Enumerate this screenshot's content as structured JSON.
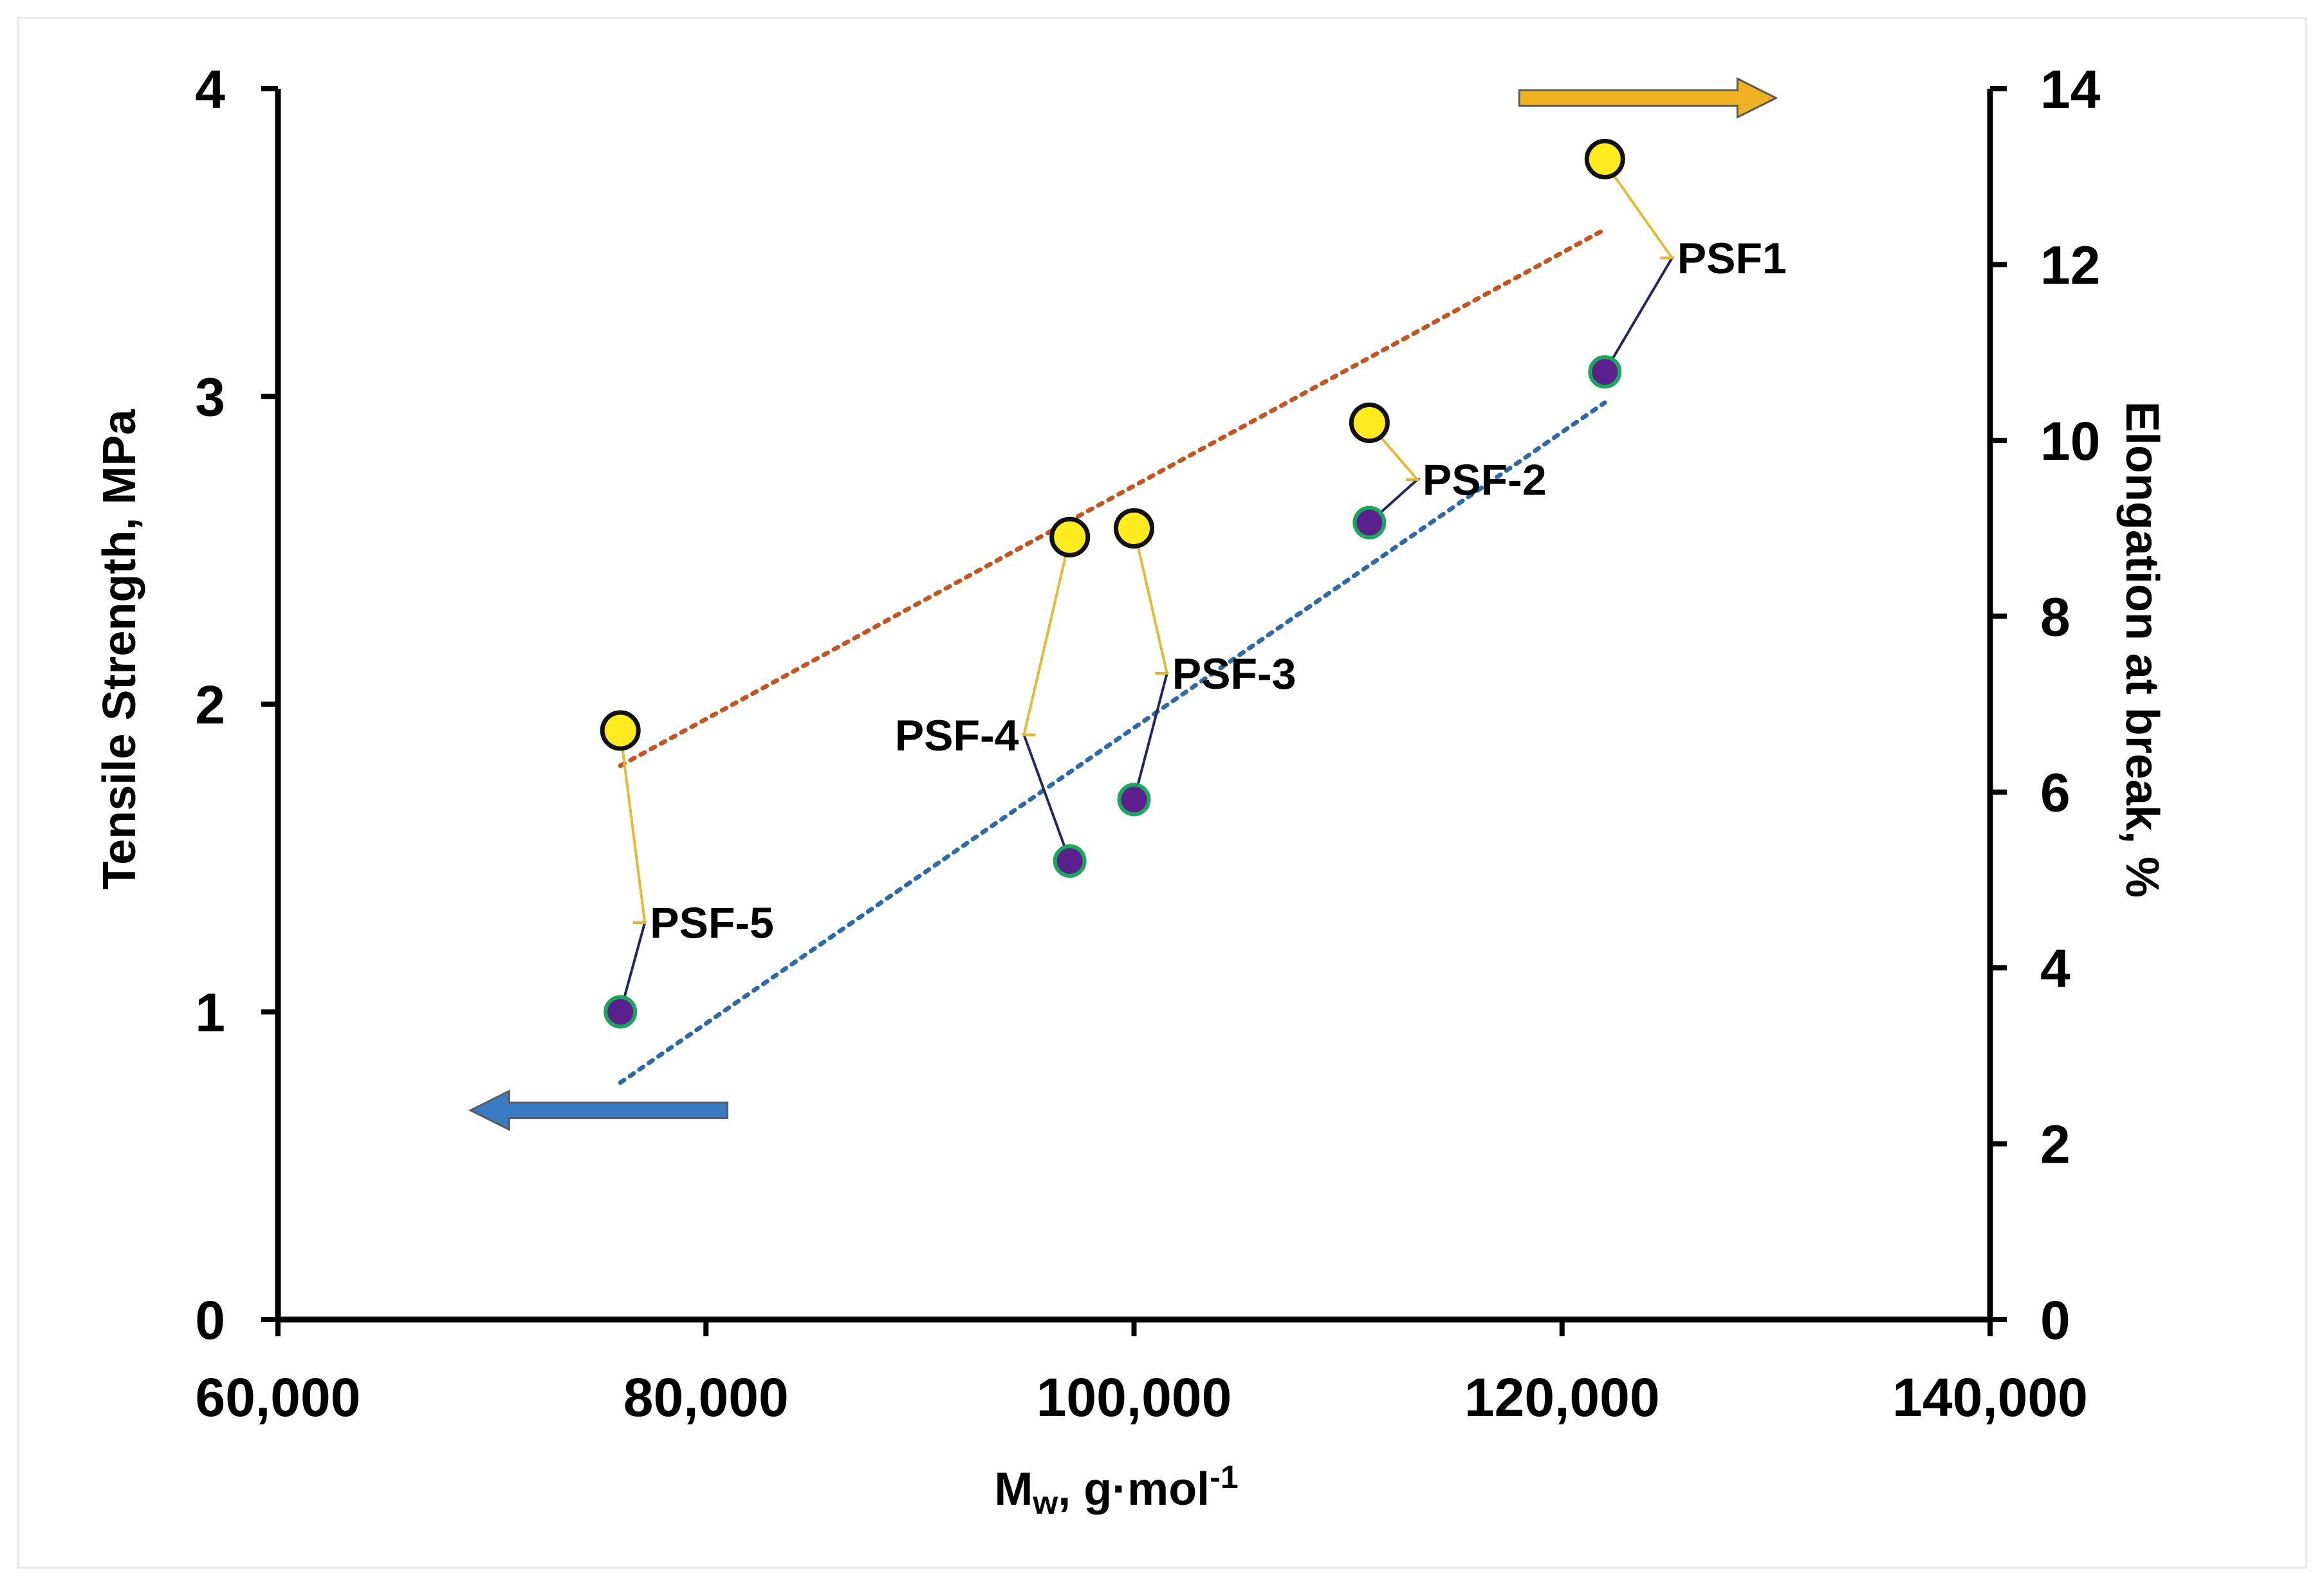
{
  "chart_data": {
    "type": "scatter",
    "title": "",
    "xlabel": "Mw, g·mol-1",
    "xlabel_main": "M",
    "xlabel_sub": "w",
    "xlabel_mid": ", g·mol",
    "xlabel_sup": "-1",
    "ylabel_left": "Tensile Strength, MPa",
    "ylabel_right": "Elongation at break, %",
    "xlim": [
      60000,
      140000
    ],
    "ylim_left": [
      0,
      4
    ],
    "ylim_right": [
      0,
      14
    ],
    "x_ticks": [
      {
        "value": 60000,
        "label": "60,000"
      },
      {
        "value": 80000,
        "label": "80,000"
      },
      {
        "value": 100000,
        "label": "100,000"
      },
      {
        "value": 120000,
        "label": "120,000"
      },
      {
        "value": 140000,
        "label": "140,000"
      }
    ],
    "y_left_ticks": [
      {
        "value": 0,
        "label": "0"
      },
      {
        "value": 1,
        "label": "1"
      },
      {
        "value": 2,
        "label": "2"
      },
      {
        "value": 3,
        "label": "3"
      },
      {
        "value": 4,
        "label": "4"
      }
    ],
    "y_right_ticks": [
      {
        "value": 0,
        "label": "0"
      },
      {
        "value": 2,
        "label": "2"
      },
      {
        "value": 4,
        "label": "4"
      },
      {
        "value": 6,
        "label": "6"
      },
      {
        "value": 8,
        "label": "8"
      },
      {
        "value": 10,
        "label": "10"
      },
      {
        "value": 12,
        "label": "12"
      },
      {
        "value": 14,
        "label": "14"
      }
    ],
    "grid": false,
    "series": [
      {
        "name": "Tensile Strength",
        "axis": "left",
        "marker_color": "#5b1f8e",
        "marker_edge": "#19a85a",
        "points": [
          {
            "label": "PSF1",
            "x": 122000,
            "y": 3.08
          },
          {
            "label": "PSF-2",
            "x": 111000,
            "y": 2.59
          },
          {
            "label": "PSF-3",
            "x": 100000,
            "y": 1.69
          },
          {
            "label": "PSF-4",
            "x": 97000,
            "y": 1.49
          },
          {
            "label": "PSF-5",
            "x": 76000,
            "y": 1.0
          }
        ],
        "trendline": {
          "color": "#2e6aa8",
          "from": [
            76000,
            0.77
          ],
          "to": [
            122000,
            2.98
          ]
        }
      },
      {
        "name": "Elongation at break",
        "axis": "right",
        "marker_color": "#ffeb1e",
        "marker_edge": "#111111",
        "points": [
          {
            "label": "PSF1",
            "x": 122000,
            "y": 13.2
          },
          {
            "label": "PSF-2",
            "x": 111000,
            "y": 10.2
          },
          {
            "label": "PSF-3",
            "x": 100000,
            "y": 9.0
          },
          {
            "label": "PSF-4",
            "x": 97000,
            "y": 8.9
          },
          {
            "label": "PSF-5",
            "x": 76000,
            "y": 6.7
          }
        ],
        "trendline": {
          "color": "#c4551f",
          "from": [
            76000,
            6.3
          ],
          "to": [
            122000,
            12.4
          ]
        }
      }
    ],
    "annotations": [
      {
        "text": "PSF1",
        "x": 124600,
        "y": 3.45,
        "align": "left",
        "s1": [
          122000,
          3.08
        ],
        "s2": [
          122000,
          3.76
        ]
      },
      {
        "text": "PSF-2",
        "x": 112700,
        "y": 2.73,
        "align": "left",
        "s1": [
          111000,
          2.59
        ],
        "s2": [
          111000,
          2.91
        ]
      },
      {
        "text": "PSF-3",
        "x": 101000,
        "y": 2.1,
        "align": "left",
        "s1": [
          100000,
          1.69
        ],
        "s2": [
          100000,
          2.57
        ]
      },
      {
        "text": "PSF-4",
        "x": 95400,
        "y": 1.9,
        "align": "right",
        "s1": [
          97000,
          1.49
        ],
        "s2": [
          97000,
          2.54
        ]
      },
      {
        "text": "PSF-5",
        "x": 76600,
        "y": 1.29,
        "align": "left",
        "s1": [
          76000,
          1.0
        ],
        "s2": [
          76000,
          1.91
        ]
      }
    ],
    "direction_arrows": [
      {
        "name": "left-axis-arrow",
        "points_to": "left",
        "color": "#3a7cc4",
        "x_from": 81000,
        "x_to": 69000,
        "y": 0.68
      },
      {
        "name": "right-axis-arrow",
        "points_to": "right",
        "color": "#f0b120",
        "x_from": 118000,
        "x_to": 130000,
        "y": 3.97
      }
    ]
  }
}
